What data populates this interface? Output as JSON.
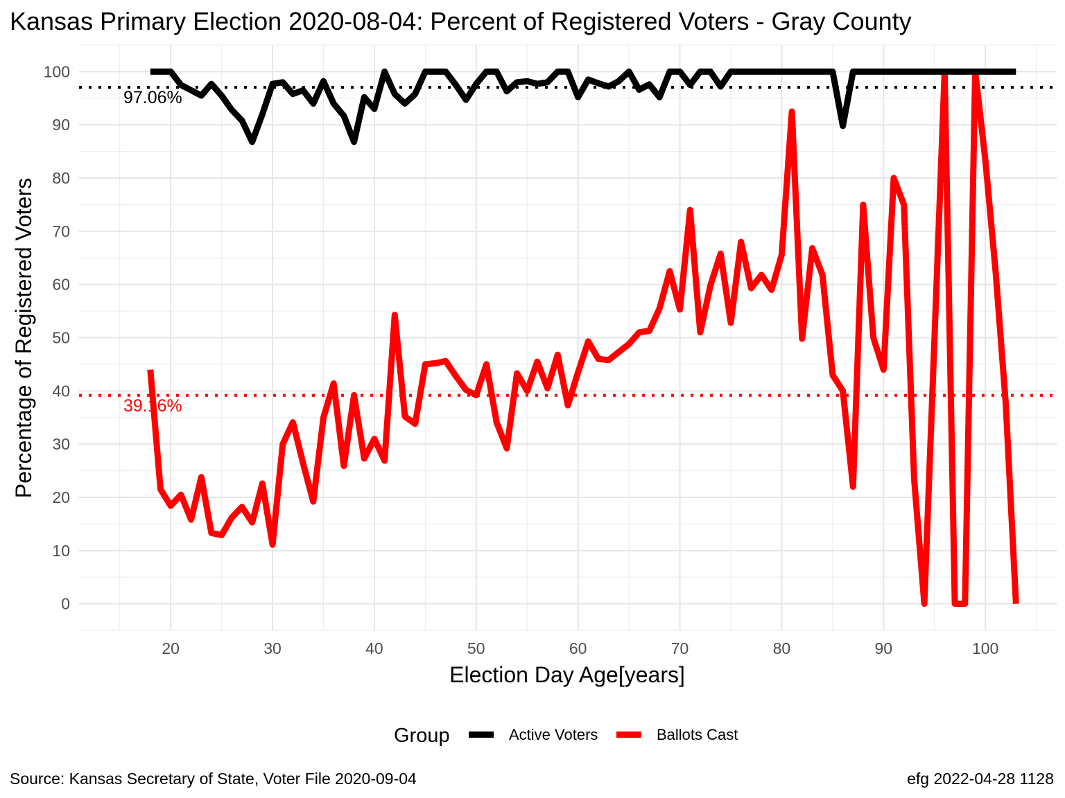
{
  "title": "Kansas Primary Election 2020-08-04:  Percent of Registered Voters - Gray County",
  "caption_left": "Source:  Kansas Secretary of State, Voter File  2020-09-04",
  "caption_right": "efg 2022-04-28 1128",
  "legend": {
    "title": "Group",
    "items": [
      {
        "label": "Active Voters",
        "color": "#000000"
      },
      {
        "label": "Ballots Cast",
        "color": "#ff0000"
      }
    ]
  },
  "chart_data": {
    "type": "line",
    "title": "Kansas Primary Election 2020-08-04:  Percent of Registered Voters - Gray County",
    "xlabel": "Election Day Age[years]",
    "ylabel": "Percentage of Registered Voters",
    "xlim": [
      11,
      107
    ],
    "ylim": [
      -5,
      105
    ],
    "xticks": [
      20,
      30,
      40,
      50,
      60,
      70,
      80,
      90,
      100
    ],
    "yticks": [
      0,
      10,
      20,
      30,
      40,
      50,
      60,
      70,
      80,
      90,
      100
    ],
    "grid": true,
    "legend_position": "bottom",
    "reference_lines": [
      {
        "value": 97.06,
        "label": "97.06%",
        "color": "#000000",
        "style": "dotted"
      },
      {
        "value": 39.16,
        "label": "39.16%",
        "color": "#ff0000",
        "style": "dotted"
      }
    ],
    "series": [
      {
        "name": "Active Voters",
        "color": "#000000",
        "x": [
          18,
          19,
          20,
          21,
          22,
          23,
          24,
          25,
          26,
          27,
          28,
          29,
          30,
          31,
          32,
          33,
          34,
          35,
          36,
          37,
          38,
          39,
          40,
          41,
          42,
          43,
          44,
          45,
          46,
          47,
          48,
          49,
          50,
          51,
          52,
          53,
          54,
          55,
          56,
          57,
          58,
          59,
          60,
          61,
          62,
          63,
          64,
          65,
          66,
          67,
          68,
          69,
          70,
          71,
          72,
          73,
          74,
          75,
          76,
          77,
          78,
          79,
          80,
          81,
          82,
          83,
          84,
          85,
          86,
          87,
          88,
          89,
          90,
          91,
          92,
          93,
          94,
          95,
          96,
          97,
          98,
          99,
          100,
          101,
          102,
          103
        ],
        "y": [
          100,
          100,
          100,
          97.5,
          96.5,
          95.5,
          97.7,
          95.5,
          92.8,
          90.8,
          86.8,
          92,
          97.7,
          98,
          95.8,
          96.5,
          94,
          98.2,
          94,
          91.7,
          86.8,
          95.2,
          93,
          100,
          95.8,
          94,
          95.8,
          100,
          100,
          100,
          97.5,
          94.7,
          97.7,
          100,
          100,
          96.3,
          98,
          98.2,
          97.7,
          98,
          100,
          100,
          95.2,
          98.5,
          97.8,
          97.2,
          98.2,
          100,
          96.6,
          97.6,
          95.2,
          100,
          100,
          97.5,
          100,
          100,
          97.2,
          100,
          100,
          100,
          100,
          100,
          100,
          100,
          100,
          100,
          100,
          100,
          89.8,
          100,
          100,
          100,
          100,
          100,
          100,
          100,
          100,
          100,
          100,
          100,
          100,
          100,
          100,
          100,
          100,
          100
        ]
      },
      {
        "name": "Ballots Cast",
        "color": "#ff0000",
        "x": [
          18,
          19,
          20,
          21,
          22,
          23,
          24,
          25,
          26,
          27,
          28,
          29,
          30,
          31,
          32,
          33,
          34,
          35,
          36,
          37,
          38,
          39,
          40,
          41,
          42,
          43,
          44,
          45,
          46,
          47,
          48,
          49,
          50,
          51,
          52,
          53,
          54,
          55,
          56,
          57,
          58,
          59,
          60,
          61,
          62,
          63,
          64,
          65,
          66,
          67,
          68,
          69,
          70,
          71,
          72,
          73,
          74,
          75,
          76,
          77,
          78,
          79,
          80,
          81,
          82,
          83,
          84,
          85,
          86,
          87,
          88,
          89,
          90,
          91,
          92,
          93,
          94,
          95,
          96,
          97,
          98,
          99,
          100,
          101,
          102,
          103
        ],
        "y": [
          44,
          21.5,
          18.4,
          20.5,
          15.8,
          23.8,
          13.3,
          12.9,
          16.2,
          18.2,
          15.3,
          22.6,
          11.1,
          30,
          34.1,
          26.4,
          19.2,
          35,
          41.4,
          25.9,
          39.2,
          27.3,
          31,
          26.9,
          54.3,
          35.2,
          33.8,
          45,
          45.2,
          45.6,
          42.8,
          40.2,
          39.2,
          45,
          34.1,
          29.2,
          43.3,
          40,
          45.5,
          40.5,
          46.8,
          37.3,
          43.5,
          49.3,
          46,
          45.8,
          47.3,
          48.8,
          51,
          51.3,
          55.5,
          62.5,
          55.3,
          74,
          51,
          59.8,
          65.8,
          52.8,
          68,
          59.3,
          61.8,
          59,
          65.6,
          92.5,
          49.8,
          66.8,
          61.8,
          43,
          40,
          22,
          75,
          50,
          44,
          80,
          75,
          23.5,
          0,
          50,
          100,
          0,
          0,
          100,
          83.3,
          62.5,
          37.5,
          0
        ]
      }
    ]
  }
}
